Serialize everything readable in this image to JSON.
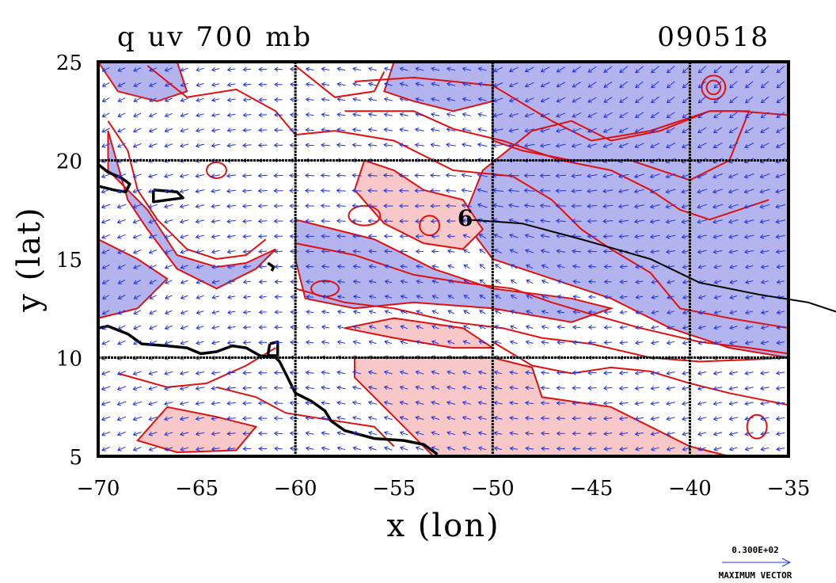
{
  "chart_data": {
    "type": "vector-contour-map",
    "title": "q uv 700 mb",
    "date_label": "090518",
    "xlabel": "x (lon)",
    "ylabel": "y (lat)",
    "xlim": [
      -70,
      -35
    ],
    "ylim": [
      5,
      25
    ],
    "x_ticks": [
      -70,
      -65,
      -60,
      -55,
      -50,
      -45,
      -40,
      -35
    ],
    "y_ticks": [
      5,
      10,
      15,
      20,
      25
    ],
    "x_tick_labels": [
      "−70",
      "−65",
      "−60",
      "−55",
      "−50",
      "−45",
      "−40",
      "−35"
    ],
    "y_tick_labels": [
      "5",
      "10",
      "15",
      "20",
      "25"
    ],
    "grid_lines_x": [
      -60,
      -50,
      -40
    ],
    "grid_lines_y": [
      10,
      20
    ],
    "grid": true,
    "colors": {
      "dry_fill": "#b3b3ee",
      "moist_fill": "#f8c8c8",
      "contour": "#e01010",
      "vectors": "#2233dd",
      "coastline": "#000000"
    },
    "storm_marker": {
      "lon": -51.3,
      "lat": 17.0,
      "symbol": "6"
    },
    "storm_track": [
      [
        -51.3,
        17.0
      ],
      [
        -48.5,
        16.8
      ],
      [
        -45.5,
        16.0
      ],
      [
        -42.0,
        15.0
      ],
      [
        -39.5,
        13.8
      ],
      [
        -36.5,
        13.2
      ],
      [
        -34.0,
        12.8
      ],
      [
        -32.5,
        12.3
      ]
    ],
    "dry_regions": [
      [
        [
          -50,
          25
        ],
        [
          -35,
          25
        ],
        [
          -35,
          10
        ],
        [
          -38,
          10.5
        ],
        [
          -41,
          11.5
        ],
        [
          -44,
          13
        ],
        [
          -47,
          14
        ],
        [
          -50,
          15
        ],
        [
          -51.5,
          17
        ],
        [
          -50.5,
          19.5
        ],
        [
          -48,
          21.5
        ],
        [
          -46,
          22
        ],
        [
          -44,
          21
        ],
        [
          -41.5,
          21.5
        ],
        [
          -39,
          22.5
        ],
        [
          -37,
          22.5
        ],
        [
          -38,
          20
        ],
        [
          -40,
          19
        ],
        [
          -43,
          20
        ],
        [
          -46,
          20
        ],
        [
          -48.5,
          20.5
        ],
        [
          -50,
          21
        ],
        [
          -50,
          25
        ]
      ],
      [
        [
          -60,
          17
        ],
        [
          -56,
          16
        ],
        [
          -53,
          14.5
        ],
        [
          -50,
          13.5
        ],
        [
          -46,
          13
        ],
        [
          -44,
          12.5
        ],
        [
          -46,
          11.8
        ],
        [
          -50,
          12.5
        ],
        [
          -54,
          12.8
        ],
        [
          -57,
          12.5
        ],
        [
          -59.5,
          13
        ],
        [
          -60,
          15
        ]
      ],
      [
        [
          -55,
          25
        ],
        [
          -50,
          25
        ],
        [
          -50,
          23
        ],
        [
          -52,
          22.5
        ],
        [
          -54,
          23
        ],
        [
          -55.5,
          23.5
        ]
      ],
      [
        [
          -69.5,
          21.5
        ],
        [
          -68.5,
          18
        ],
        [
          -67.5,
          16.5
        ],
        [
          -66,
          14.5
        ],
        [
          -64,
          13.5
        ],
        [
          -62,
          14.5
        ],
        [
          -61,
          15.5
        ],
        [
          -62.5,
          14.8
        ],
        [
          -64,
          14.6
        ],
        [
          -66,
          15.2
        ],
        [
          -67.5,
          17.5
        ],
        [
          -69.5,
          19.5
        ]
      ],
      [
        [
          -70,
          16
        ],
        [
          -68,
          15
        ],
        [
          -66.5,
          14
        ],
        [
          -68,
          12.5
        ],
        [
          -70,
          12
        ]
      ],
      [
        [
          -70,
          25
        ],
        [
          -66,
          25
        ],
        [
          -65.5,
          23.5
        ],
        [
          -67,
          23
        ],
        [
          -69,
          23.5
        ]
      ]
    ],
    "moist_regions": [
      [
        [
          -56.5,
          20
        ],
        [
          -55,
          19.5
        ],
        [
          -53.5,
          18.5
        ],
        [
          -51.5,
          18
        ],
        [
          -50.5,
          16.5
        ],
        [
          -51.5,
          15.5
        ],
        [
          -53.5,
          15.8
        ],
        [
          -55.5,
          16.8
        ],
        [
          -57,
          18.5
        ]
      ],
      [
        [
          -57,
          10
        ],
        [
          -50,
          10
        ],
        [
          -48,
          9.5
        ],
        [
          -47.5,
          8
        ],
        [
          -44,
          7.5
        ],
        [
          -42,
          6.5
        ],
        [
          -40,
          5.5
        ],
        [
          -38,
          5
        ],
        [
          -50,
          5
        ],
        [
          -53,
          5
        ],
        [
          -55,
          7
        ],
        [
          -57,
          9
        ]
      ],
      [
        [
          -57.5,
          11.5
        ],
        [
          -55,
          11
        ],
        [
          -52,
          10.5
        ],
        [
          -50,
          10.5
        ],
        [
          -51.5,
          11.5
        ],
        [
          -55,
          12
        ]
      ],
      [
        [
          -66.5,
          7.5
        ],
        [
          -64,
          7
        ],
        [
          -62,
          6.5
        ],
        [
          -63,
          5.3
        ],
        [
          -66,
          5.2
        ],
        [
          -68,
          5.8
        ]
      ]
    ],
    "contour_lines": [
      [
        [
          -57,
          24
        ],
        [
          -54,
          24.2
        ],
        [
          -50,
          23.8
        ],
        [
          -47,
          22
        ],
        [
          -45,
          21
        ],
        [
          -42,
          21.5
        ],
        [
          -39,
          22.5
        ],
        [
          -37.5,
          22.5
        ],
        [
          -35,
          22.3
        ]
      ],
      [
        [
          -57.5,
          22.5
        ],
        [
          -54,
          22.5
        ],
        [
          -52,
          21.6
        ],
        [
          -49.5,
          21
        ],
        [
          -46.5,
          20
        ],
        [
          -44,
          19.5
        ],
        [
          -42,
          18.5
        ],
        [
          -40.5,
          17.5
        ],
        [
          -39,
          17
        ],
        [
          -37.5,
          17.5
        ],
        [
          -36,
          18
        ]
      ],
      [
        [
          -58,
          21.5
        ],
        [
          -55,
          21
        ],
        [
          -52,
          19.5
        ],
        [
          -49,
          19.2
        ],
        [
          -47,
          18
        ],
        [
          -45.5,
          16.5
        ],
        [
          -44,
          15.5
        ],
        [
          -42,
          14.3
        ],
        [
          -40.5,
          12.5
        ],
        [
          -38,
          12
        ],
        [
          -35,
          11.5
        ]
      ],
      [
        [
          -60,
          15.8
        ],
        [
          -57,
          15.2
        ],
        [
          -54,
          14.2
        ],
        [
          -51.5,
          13.8
        ],
        [
          -49,
          13.5
        ],
        [
          -47,
          12.8
        ],
        [
          -45,
          12.2
        ],
        [
          -42.5,
          11.5
        ],
        [
          -39.5,
          10.8
        ],
        [
          -37,
          10.5
        ],
        [
          -35,
          10.2
        ]
      ],
      [
        [
          -60,
          13.5
        ],
        [
          -57.5,
          12.8
        ],
        [
          -55,
          12.5
        ],
        [
          -52,
          11.8
        ],
        [
          -49.5,
          11.5
        ],
        [
          -47.5,
          11
        ],
        [
          -45,
          10.7
        ],
        [
          -42,
          10
        ],
        [
          -39.5,
          9.8
        ],
        [
          -37,
          9.9
        ],
        [
          -35,
          10
        ]
      ],
      [
        [
          -69.5,
          22
        ],
        [
          -68.5,
          20.5
        ],
        [
          -68,
          18.5
        ],
        [
          -67,
          17
        ],
        [
          -65.5,
          15.5
        ],
        [
          -64,
          15
        ],
        [
          -62.5,
          15.2
        ],
        [
          -61.5,
          16
        ]
      ],
      [
        [
          -67.5,
          24.8
        ],
        [
          -65.5,
          23.2
        ],
        [
          -63,
          23.6
        ],
        [
          -61,
          22.5
        ],
        [
          -60,
          21.3
        ],
        [
          -58,
          21.5
        ]
      ],
      [
        [
          -60,
          24.8
        ],
        [
          -58,
          23.2
        ],
        [
          -56,
          23.5
        ],
        [
          -55.5,
          24.5
        ]
      ],
      [
        [
          -50,
          10.8
        ],
        [
          -48,
          9.6
        ],
        [
          -46,
          9.2
        ],
        [
          -44,
          9.5
        ],
        [
          -42,
          9.3
        ],
        [
          -40,
          8.7
        ],
        [
          -38,
          8.2
        ],
        [
          -36,
          7.8
        ],
        [
          -35,
          7.6
        ]
      ],
      [
        [
          -64,
          8.5
        ],
        [
          -62,
          8
        ],
        [
          -60.5,
          7.2
        ],
        [
          -58,
          6.8
        ],
        [
          -56,
          6.5
        ],
        [
          -55,
          5.5
        ]
      ],
      [
        [
          -69,
          9.2
        ],
        [
          -66.5,
          8.5
        ],
        [
          -64.5,
          8.7
        ],
        [
          -62.5,
          9.6
        ],
        [
          -61,
          10.5
        ]
      ]
    ],
    "closed_contours": [
      {
        "lon": -38.8,
        "lat": 23.7,
        "rx": 0.6,
        "ry": 0.6
      },
      {
        "lon": -38.8,
        "lat": 23.7,
        "rx": 0.35,
        "ry": 0.35
      },
      {
        "lon": -53.2,
        "lat": 16.7,
        "rx": 0.5,
        "ry": 0.5
      },
      {
        "lon": -36.6,
        "lat": 6.5,
        "rx": 0.5,
        "ry": 0.6
      },
      {
        "lon": -56.5,
        "lat": 17.2,
        "rx": 0.8,
        "ry": 0.5
      },
      {
        "lon": -58.5,
        "lat": 13.5,
        "rx": 0.7,
        "ry": 0.4
      },
      {
        "lon": -64,
        "lat": 19.5,
        "rx": 0.5,
        "ry": 0.4
      }
    ],
    "coastline": [
      [
        [
          -70,
          11.5
        ],
        [
          -69.5,
          11.6
        ],
        [
          -68.5,
          11.2
        ],
        [
          -67.8,
          10.7
        ],
        [
          -66.5,
          10.6
        ],
        [
          -65.5,
          10.5
        ],
        [
          -64.8,
          10.2
        ],
        [
          -64,
          10.3
        ],
        [
          -63.2,
          10.6
        ],
        [
          -62.5,
          10.5
        ],
        [
          -61.8,
          10.1
        ],
        [
          -61,
          10
        ],
        [
          -60.8,
          9.8
        ],
        [
          -60.5,
          9.2
        ],
        [
          -60,
          8.2
        ],
        [
          -59.2,
          7.8
        ],
        [
          -58.5,
          7.3
        ],
        [
          -58.2,
          6.8
        ],
        [
          -57.5,
          6.3
        ],
        [
          -56,
          5.9
        ],
        [
          -54.5,
          5.8
        ],
        [
          -53.5,
          5.6
        ],
        [
          -52.8,
          5.1
        ]
      ],
      [
        [
          -70,
          19.8
        ],
        [
          -69.5,
          19.4
        ],
        [
          -68.8,
          19.1
        ],
        [
          -68.4,
          18.8
        ],
        [
          -68.6,
          18.4
        ],
        [
          -69.2,
          18.5
        ],
        [
          -70,
          18.7
        ]
      ],
      [
        [
          -67.2,
          18.5
        ],
        [
          -66,
          18.4
        ],
        [
          -65.7,
          18.1
        ],
        [
          -67.2,
          17.9
        ],
        [
          -67.2,
          18.5
        ]
      ],
      [
        [
          -61.3,
          10.7
        ],
        [
          -60.9,
          10.8
        ],
        [
          -60.9,
          10.1
        ],
        [
          -61.4,
          10.1
        ],
        [
          -61.3,
          10.7
        ]
      ],
      [
        [
          -61.4,
          14.8
        ],
        [
          -61.1,
          14.6
        ],
        [
          -61.2,
          14.4
        ]
      ]
    ],
    "wind_field": {
      "nx": 44,
      "ny": 26
    },
    "reference_vector": {
      "label": "0.300E+02",
      "caption": "MAXIMUM VECTOR"
    }
  }
}
